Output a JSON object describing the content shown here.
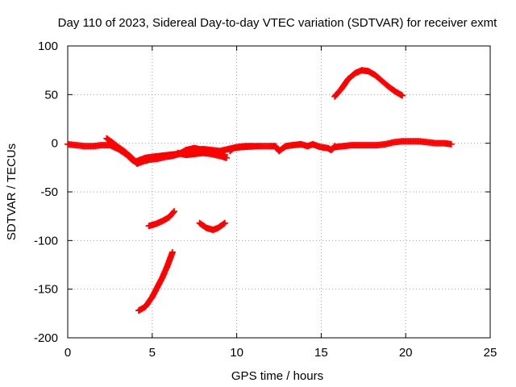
{
  "chart_data": {
    "type": "scatter",
    "title": "Day 110 of 2023, Sidereal Day-to-day VTEC variation (SDTVAR) for receiver exmt",
    "xlabel": "GPS time / hours",
    "ylabel": "SDTVAR / TECUs",
    "xlim": [
      0,
      25
    ],
    "ylim": [
      -200,
      100
    ],
    "xticks": [
      0,
      5,
      10,
      15,
      20,
      25
    ],
    "yticks": [
      -200,
      -150,
      -100,
      -50,
      0,
      50,
      100
    ],
    "grid": true,
    "marker": "plus",
    "color": "#ff0000",
    "series": [
      {
        "name": "main-band-a",
        "points": [
          [
            0,
            -1
          ],
          [
            0.5,
            -2
          ],
          [
            1,
            -3
          ],
          [
            1.5,
            -3
          ],
          [
            2,
            -2
          ],
          [
            2.5,
            -2
          ],
          [
            3,
            -6
          ],
          [
            3.5,
            -12
          ],
          [
            3.8,
            -17
          ],
          [
            4,
            -19
          ],
          [
            4.3,
            -17
          ],
          [
            4.6,
            -15
          ],
          [
            5,
            -14
          ],
          [
            5.5,
            -13
          ],
          [
            6,
            -12
          ],
          [
            6.5,
            -11
          ],
          [
            7,
            -9
          ],
          [
            7.5,
            -7
          ],
          [
            8,
            -6
          ],
          [
            8.5,
            -7
          ],
          [
            9,
            -8
          ],
          [
            9.5,
            -6
          ],
          [
            10,
            -4
          ],
          [
            10.5,
            -3
          ],
          [
            11,
            -3
          ]
        ]
      },
      {
        "name": "main-band-b",
        "points": [
          [
            2.3,
            5
          ],
          [
            2.7,
            0
          ],
          [
            3,
            -4
          ],
          [
            3.4,
            -9
          ],
          [
            3.8,
            -15
          ],
          [
            4.1,
            -21
          ],
          [
            4.4,
            -19
          ],
          [
            4.8,
            -17
          ],
          [
            5.3,
            -16
          ],
          [
            5.8,
            -14
          ],
          [
            6.2,
            -13
          ],
          [
            6.6,
            -11
          ],
          [
            7,
            -7
          ],
          [
            7.5,
            -5
          ],
          [
            8,
            -7
          ],
          [
            8.5,
            -9
          ],
          [
            9,
            -11
          ],
          [
            9.3,
            -12
          ]
        ]
      },
      {
        "name": "main-band-c",
        "points": [
          [
            6.5,
            -10
          ],
          [
            7,
            -12
          ],
          [
            7.5,
            -11
          ],
          [
            8,
            -10
          ],
          [
            8.5,
            -11
          ],
          [
            9,
            -13
          ],
          [
            9.4,
            -15
          ]
        ]
      },
      {
        "name": "mid-segments",
        "points": [
          [
            9.6,
            -8
          ],
          [
            9.8,
            -5
          ],
          [
            10.2,
            -4
          ],
          [
            11.2,
            -3
          ],
          [
            12.3,
            -3
          ],
          [
            12.5,
            -8
          ],
          [
            12.9,
            -3
          ],
          [
            13.3,
            -2
          ],
          [
            13.8,
            -1
          ],
          [
            14.2,
            -3
          ],
          [
            14.5,
            -1
          ],
          [
            14.8,
            -3
          ],
          [
            15,
            -4
          ],
          [
            15.4,
            -5
          ],
          [
            15.6,
            -7
          ],
          [
            15.8,
            -3
          ]
        ]
      },
      {
        "name": "evening-band",
        "points": [
          [
            15.8,
            -4
          ],
          [
            16.3,
            -3
          ],
          [
            16.8,
            -2
          ],
          [
            17.3,
            -2
          ],
          [
            17.8,
            -2
          ],
          [
            18.3,
            -2
          ],
          [
            18.8,
            -1
          ],
          [
            19.3,
            1
          ],
          [
            19.8,
            2
          ],
          [
            20.3,
            2
          ],
          [
            20.8,
            2
          ],
          [
            21.3,
            1
          ],
          [
            21.8,
            0
          ],
          [
            22.3,
            0
          ],
          [
            22.7,
            -1
          ]
        ]
      },
      {
        "name": "arc-positive",
        "points": [
          [
            15.8,
            48
          ],
          [
            16.2,
            56
          ],
          [
            16.6,
            66
          ],
          [
            17,
            72
          ],
          [
            17.4,
            75
          ],
          [
            17.8,
            74
          ],
          [
            18.2,
            70
          ],
          [
            18.6,
            64
          ],
          [
            19,
            58
          ],
          [
            19.4,
            53
          ],
          [
            19.8,
            49
          ]
        ]
      },
      {
        "name": "segment-low",
        "points": [
          [
            4.2,
            -172
          ],
          [
            4.6,
            -168
          ],
          [
            5,
            -158
          ],
          [
            5.3,
            -148
          ],
          [
            5.6,
            -138
          ],
          [
            5.9,
            -126
          ],
          [
            6.2,
            -112
          ]
        ]
      },
      {
        "name": "segment-mid-left",
        "points": [
          [
            4.8,
            -85
          ],
          [
            5.2,
            -83
          ],
          [
            5.6,
            -80
          ],
          [
            6,
            -76
          ],
          [
            6.3,
            -70
          ]
        ]
      },
      {
        "name": "segment-mid-right",
        "points": [
          [
            7.8,
            -82
          ],
          [
            8.2,
            -87
          ],
          [
            8.6,
            -89
          ],
          [
            8.9,
            -87
          ],
          [
            9.3,
            -82
          ]
        ]
      }
    ]
  }
}
